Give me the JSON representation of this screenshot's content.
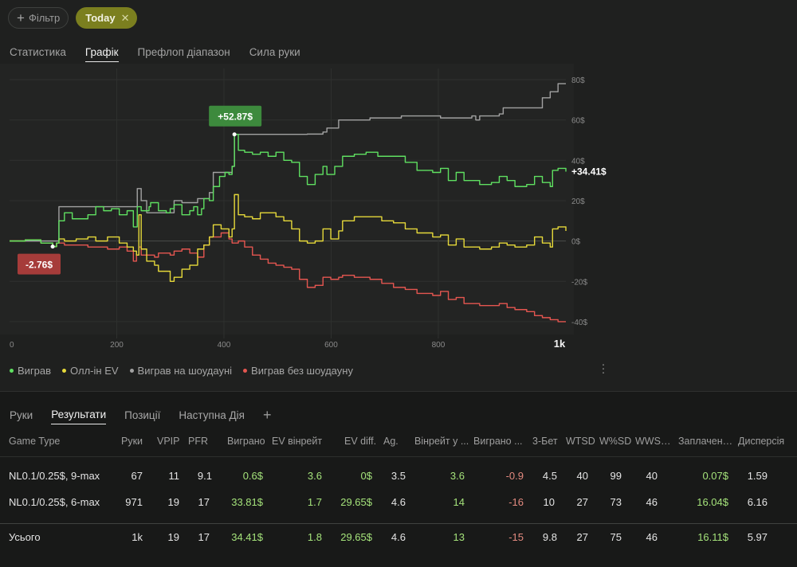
{
  "filters": {
    "filter_label": "Фільтр",
    "today_label": "Today"
  },
  "main_tabs": [
    "Статистика",
    "Графік",
    "Префлоп діапазон",
    "Сила руки"
  ],
  "chart_data": {
    "type": "line",
    "x_ticks": [
      "0",
      "200",
      "400",
      "600",
      "800",
      "1k"
    ],
    "y_ticks": [
      "80$",
      "60$",
      "40$",
      "20$",
      "0$",
      "-20$",
      "-40$"
    ],
    "xlim": [
      0,
      1038
    ],
    "ylim": [
      -42,
      80
    ],
    "callouts": {
      "max": "+52.87$",
      "min": "-2.76$",
      "end": "+34.41$"
    },
    "colors": {
      "won": "#5fe061",
      "allin_ev": "#e6d93a",
      "showdown": "#a2a2a2",
      "non_showdown": "#e55650"
    },
    "series": [
      {
        "name": "Виграв",
        "color": "#5fe061",
        "points": [
          [
            0,
            0
          ],
          [
            20,
            0.5
          ],
          [
            40,
            -1
          ],
          [
            55,
            -2.76
          ],
          [
            60,
            -1
          ],
          [
            63,
            10
          ],
          [
            70,
            14
          ],
          [
            80,
            11
          ],
          [
            100,
            13
          ],
          [
            110,
            17
          ],
          [
            120,
            15
          ],
          [
            130,
            16
          ],
          [
            140,
            13
          ],
          [
            150,
            15
          ],
          [
            158,
            7
          ],
          [
            163,
            17
          ],
          [
            168,
            15
          ],
          [
            178,
            17
          ],
          [
            180,
            19
          ],
          [
            190,
            15
          ],
          [
            200,
            14
          ],
          [
            205,
            16
          ],
          [
            210,
            18
          ],
          [
            220,
            13
          ],
          [
            230,
            15
          ],
          [
            235,
            17
          ],
          [
            240,
            13
          ],
          [
            245,
            16
          ],
          [
            248,
            21
          ],
          [
            255,
            20
          ],
          [
            260,
            27
          ],
          [
            268,
            32
          ],
          [
            275,
            34
          ],
          [
            280,
            33
          ],
          [
            284,
            37
          ],
          [
            287,
            52.87
          ],
          [
            292,
            45
          ],
          [
            300,
            44
          ],
          [
            310,
            43
          ],
          [
            320,
            44
          ],
          [
            330,
            42
          ],
          [
            340,
            44
          ],
          [
            350,
            40
          ],
          [
            360,
            39
          ],
          [
            370,
            32
          ],
          [
            380,
            28
          ],
          [
            390,
            33
          ],
          [
            400,
            37
          ],
          [
            405,
            33
          ],
          [
            415,
            37
          ],
          [
            425,
            42
          ],
          [
            440,
            43
          ],
          [
            455,
            44
          ],
          [
            470,
            42
          ],
          [
            490,
            42
          ],
          [
            505,
            39
          ],
          [
            520,
            35
          ],
          [
            540,
            34
          ],
          [
            550,
            36
          ],
          [
            560,
            30
          ],
          [
            570,
            34
          ],
          [
            580,
            30
          ],
          [
            600,
            28
          ],
          [
            615,
            29
          ],
          [
            625,
            32
          ],
          [
            635,
            30
          ],
          [
            645,
            27
          ],
          [
            660,
            28
          ],
          [
            670,
            32
          ],
          [
            680,
            29
          ],
          [
            690,
            27
          ],
          [
            693,
            35
          ],
          [
            700,
            36
          ],
          [
            710,
            34.41
          ]
        ]
      },
      {
        "name": "Олл-ін EV",
        "color": "#e6d93a",
        "points": [
          [
            0,
            0
          ],
          [
            20,
            0.5
          ],
          [
            40,
            -1
          ],
          [
            55,
            -2.76
          ],
          [
            60,
            -1
          ],
          [
            63,
            1
          ],
          [
            70,
            0
          ],
          [
            85,
            1
          ],
          [
            100,
            2
          ],
          [
            110,
            0
          ],
          [
            125,
            2
          ],
          [
            140,
            -1
          ],
          [
            150,
            -3
          ],
          [
            158,
            -5
          ],
          [
            162,
            -7
          ],
          [
            165,
            13
          ],
          [
            168,
            -4
          ],
          [
            175,
            -10
          ],
          [
            185,
            -12
          ],
          [
            190,
            -15
          ],
          [
            205,
            -20
          ],
          [
            210,
            -18
          ],
          [
            220,
            -14
          ],
          [
            230,
            -12
          ],
          [
            240,
            -4
          ],
          [
            248,
            -2
          ],
          [
            255,
            2
          ],
          [
            260,
            8
          ],
          [
            270,
            6
          ],
          [
            280,
            2
          ],
          [
            284,
            6
          ],
          [
            287,
            23
          ],
          [
            292,
            13
          ],
          [
            300,
            12
          ],
          [
            310,
            11
          ],
          [
            320,
            14
          ],
          [
            330,
            14
          ],
          [
            340,
            12
          ],
          [
            350,
            10
          ],
          [
            360,
            6
          ],
          [
            370,
            0
          ],
          [
            380,
            -1
          ],
          [
            390,
            0
          ],
          [
            400,
            6
          ],
          [
            410,
            1
          ],
          [
            420,
            5
          ],
          [
            425,
            10
          ],
          [
            440,
            12
          ],
          [
            460,
            12
          ],
          [
            475,
            10
          ],
          [
            490,
            9
          ],
          [
            505,
            6
          ],
          [
            520,
            4
          ],
          [
            540,
            2
          ],
          [
            550,
            3
          ],
          [
            560,
            -2
          ],
          [
            570,
            1
          ],
          [
            580,
            -3
          ],
          [
            600,
            -4
          ],
          [
            615,
            -3
          ],
          [
            625,
            -1
          ],
          [
            635,
            -2
          ],
          [
            645,
            -3
          ],
          [
            660,
            -2
          ],
          [
            670,
            2
          ],
          [
            680,
            -1
          ],
          [
            690,
            -3
          ],
          [
            693,
            6
          ],
          [
            700,
            7
          ],
          [
            710,
            5
          ]
        ]
      },
      {
        "name": "Виграв на шоудауні",
        "color": "#a2a2a2",
        "points": [
          [
            0,
            0
          ],
          [
            60,
            0
          ],
          [
            63,
            17
          ],
          [
            80,
            17
          ],
          [
            100,
            17
          ],
          [
            155,
            17
          ],
          [
            158,
            17
          ],
          [
            163,
            26
          ],
          [
            168,
            20
          ],
          [
            175,
            14
          ],
          [
            185,
            14
          ],
          [
            195,
            14
          ],
          [
            210,
            20
          ],
          [
            220,
            19
          ],
          [
            240,
            21
          ],
          [
            250,
            21
          ],
          [
            255,
            24
          ],
          [
            260,
            34
          ],
          [
            275,
            34
          ],
          [
            284,
            37
          ],
          [
            287,
            52.87
          ],
          [
            300,
            52.87
          ],
          [
            380,
            53
          ],
          [
            400,
            54
          ],
          [
            405,
            56
          ],
          [
            415,
            56
          ],
          [
            420,
            60
          ],
          [
            460,
            61
          ],
          [
            500,
            62
          ],
          [
            550,
            61
          ],
          [
            590,
            62
          ],
          [
            595,
            60
          ],
          [
            600,
            62
          ],
          [
            625,
            63
          ],
          [
            630,
            66
          ],
          [
            640,
            66
          ],
          [
            675,
            66
          ],
          [
            680,
            71
          ],
          [
            690,
            74
          ],
          [
            700,
            78
          ],
          [
            710,
            78
          ]
        ]
      },
      {
        "name": "Виграв без шоудауну",
        "color": "#e55650",
        "points": [
          [
            0,
            0
          ],
          [
            20,
            0.5
          ],
          [
            40,
            -1
          ],
          [
            55,
            -2.76
          ],
          [
            60,
            -1
          ],
          [
            63,
            -1
          ],
          [
            70,
            -2
          ],
          [
            85,
            -2
          ],
          [
            100,
            -3
          ],
          [
            115,
            -3
          ],
          [
            125,
            -4
          ],
          [
            140,
            -3
          ],
          [
            150,
            -5
          ],
          [
            158,
            -10
          ],
          [
            162,
            -7
          ],
          [
            165,
            -3
          ],
          [
            168,
            -7
          ],
          [
            175,
            -7
          ],
          [
            185,
            -8
          ],
          [
            190,
            -6
          ],
          [
            205,
            -7
          ],
          [
            210,
            -5
          ],
          [
            220,
            -4
          ],
          [
            230,
            -6
          ],
          [
            240,
            -8
          ],
          [
            248,
            -2
          ],
          [
            255,
            2
          ],
          [
            260,
            2
          ],
          [
            270,
            4
          ],
          [
            280,
            1
          ],
          [
            284,
            -1
          ],
          [
            287,
            -1
          ],
          [
            292,
            0
          ],
          [
            300,
            -3
          ],
          [
            310,
            -7
          ],
          [
            320,
            -9
          ],
          [
            330,
            -11
          ],
          [
            340,
            -12
          ],
          [
            350,
            -13
          ],
          [
            360,
            -14
          ],
          [
            370,
            -19
          ],
          [
            380,
            -23
          ],
          [
            390,
            -22
          ],
          [
            400,
            -18
          ],
          [
            410,
            -19
          ],
          [
            420,
            -18
          ],
          [
            425,
            -17
          ],
          [
            440,
            -18
          ],
          [
            460,
            -19
          ],
          [
            475,
            -21
          ],
          [
            490,
            -23
          ],
          [
            505,
            -24
          ],
          [
            520,
            -26
          ],
          [
            540,
            -27
          ],
          [
            550,
            -25
          ],
          [
            560,
            -29
          ],
          [
            570,
            -28
          ],
          [
            580,
            -31
          ],
          [
            600,
            -32
          ],
          [
            615,
            -32
          ],
          [
            625,
            -31
          ],
          [
            635,
            -33
          ],
          [
            645,
            -34
          ],
          [
            660,
            -35
          ],
          [
            670,
            -37
          ],
          [
            680,
            -38
          ],
          [
            690,
            -39
          ],
          [
            700,
            -40
          ],
          [
            710,
            -40
          ]
        ]
      }
    ]
  },
  "legend": [
    {
      "label": "Виграв",
      "color": "#5fe061"
    },
    {
      "label": "Олл-ін EV",
      "color": "#e6d93a"
    },
    {
      "label": "Виграв на шоудауні",
      "color": "#a2a2a2"
    },
    {
      "label": "Виграв без шоудауну",
      "color": "#e55650"
    }
  ],
  "sub_tabs": [
    "Руки",
    "Результати",
    "Позиції",
    "Наступна Дія"
  ],
  "table": {
    "headers": [
      "Game Type",
      "Руки",
      "VPIP",
      "PFR",
      "Виграно",
      "EV вінрейт",
      "EV diff.",
      "Ag.",
      "Вінрейт у ...",
      "Виграно ...",
      "3-Бет",
      "WTSD",
      "W%SD",
      "WWSF%",
      "Заплачено ...",
      "Дисперсія"
    ],
    "rows": [
      [
        "NL0.1/0.25$, 9-max",
        "67",
        "11",
        "9.1",
        "0.6$",
        "3.6",
        "0$",
        "3.5",
        "3.6",
        "-0.9",
        "4.5",
        "40",
        "99",
        "40",
        "0.07$",
        "1.59"
      ],
      [
        "NL0.1/0.25$, 6-max",
        "971",
        "19",
        "17",
        "33.81$",
        "1.7",
        "29.65$",
        "4.6",
        "14",
        "-16",
        "10",
        "27",
        "73",
        "46",
        "16.04$",
        "6.16"
      ]
    ],
    "total": [
      "Усього",
      "1k",
      "19",
      "17",
      "34.41$",
      "1.8",
      "29.65$",
      "4.6",
      "13",
      "-15",
      "9.8",
      "27",
      "75",
      "46",
      "16.11$",
      "5.97"
    ]
  }
}
